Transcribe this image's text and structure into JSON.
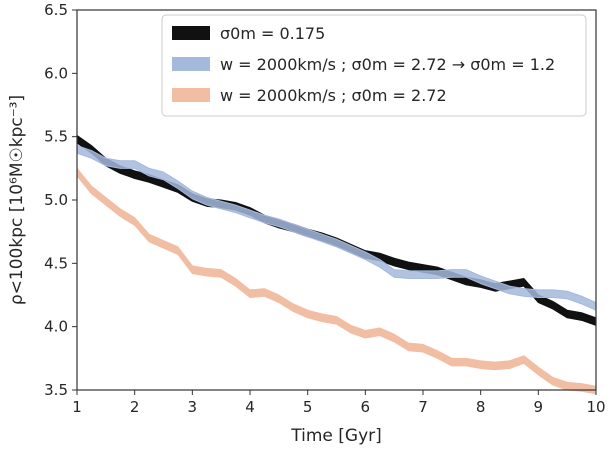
{
  "chart_data": {
    "type": "line",
    "xlabel": "Time [Gyr]",
    "ylabel": "ρ<100kpc [10⁶M☉kpc⁻³]",
    "xlim": [
      1,
      10
    ],
    "ylim": [
      3.5,
      6.5
    ],
    "xticks": [
      1,
      2,
      3,
      4,
      5,
      6,
      7,
      8,
      9,
      10
    ],
    "yticks": [
      3.5,
      4.0,
      4.5,
      5.0,
      5.5,
      6.0,
      6.5
    ],
    "xtick_labels": [
      "1",
      "2",
      "3",
      "4",
      "5",
      "6",
      "7",
      "8",
      "9",
      "10"
    ],
    "ytick_labels": [
      "3.5",
      "4.0",
      "4.5",
      "5.0",
      "5.5",
      "6.0",
      "6.5"
    ],
    "grid": false,
    "legend_position": "top-right",
    "series": [
      {
        "legend_label": "σ0m = 0.175",
        "color": "#111111",
        "band_width": 0.06,
        "x": [
          1.0,
          1.25,
          1.5,
          1.75,
          2.0,
          2.25,
          2.5,
          2.75,
          3.0,
          3.25,
          3.5,
          3.75,
          4.0,
          4.25,
          4.5,
          4.75,
          5.0,
          5.25,
          5.5,
          5.75,
          6.0,
          6.25,
          6.5,
          6.75,
          7.0,
          7.25,
          7.5,
          7.75,
          8.0,
          8.25,
          8.5,
          8.75,
          9.0,
          9.25,
          9.5,
          9.75,
          10.0
        ],
        "y": [
          5.48,
          5.4,
          5.3,
          5.24,
          5.2,
          5.17,
          5.13,
          5.09,
          5.02,
          4.98,
          4.97,
          4.95,
          4.91,
          4.85,
          4.81,
          4.78,
          4.74,
          4.71,
          4.67,
          4.62,
          4.57,
          4.55,
          4.51,
          4.48,
          4.46,
          4.44,
          4.4,
          4.36,
          4.34,
          4.31,
          4.33,
          4.35,
          4.22,
          4.17,
          4.1,
          4.08,
          4.04
        ]
      },
      {
        "legend_label": "w = 2000km/s ;  σ0m = 2.72 → σ0m = 1.2",
        "color": "#a4b9dc",
        "band_width": 0.06,
        "x": [
          1.0,
          1.25,
          1.5,
          1.75,
          2.0,
          2.25,
          2.5,
          2.75,
          3.0,
          3.25,
          3.5,
          3.75,
          4.0,
          4.25,
          4.5,
          4.75,
          5.0,
          5.25,
          5.5,
          5.75,
          6.0,
          6.25,
          6.5,
          6.75,
          7.0,
          7.25,
          7.5,
          7.75,
          8.0,
          8.25,
          8.5,
          8.75,
          9.0,
          9.25,
          9.5,
          9.75,
          10.0
        ],
        "y": [
          5.4,
          5.36,
          5.3,
          5.28,
          5.28,
          5.22,
          5.19,
          5.12,
          5.04,
          4.99,
          4.96,
          4.93,
          4.89,
          4.85,
          4.82,
          4.78,
          4.74,
          4.7,
          4.66,
          4.61,
          4.56,
          4.5,
          4.42,
          4.41,
          4.41,
          4.41,
          4.42,
          4.42,
          4.37,
          4.33,
          4.29,
          4.27,
          4.26,
          4.26,
          4.25,
          4.21,
          4.16
        ]
      },
      {
        "legend_label": "w = 2000km/s ;  σ0m = 2.72",
        "color": "#f1bea3",
        "band_width": 0.06,
        "x": [
          1.0,
          1.25,
          1.5,
          1.75,
          2.0,
          2.25,
          2.5,
          2.75,
          3.0,
          3.25,
          3.5,
          3.75,
          4.0,
          4.25,
          4.5,
          4.75,
          5.0,
          5.25,
          5.5,
          5.75,
          6.0,
          6.25,
          6.5,
          6.75,
          7.0,
          7.25,
          7.5,
          7.75,
          8.0,
          8.25,
          8.5,
          8.75,
          9.0,
          9.25,
          9.5,
          9.75,
          10.0
        ],
        "y": [
          5.22,
          5.08,
          4.99,
          4.9,
          4.83,
          4.7,
          4.65,
          4.6,
          4.45,
          4.43,
          4.42,
          4.35,
          4.26,
          4.27,
          4.22,
          4.15,
          4.1,
          4.07,
          4.05,
          3.98,
          3.94,
          3.96,
          3.91,
          3.84,
          3.83,
          3.78,
          3.72,
          3.72,
          3.7,
          3.69,
          3.7,
          3.74,
          3.65,
          3.57,
          3.53,
          3.52,
          3.5
        ]
      }
    ]
  }
}
